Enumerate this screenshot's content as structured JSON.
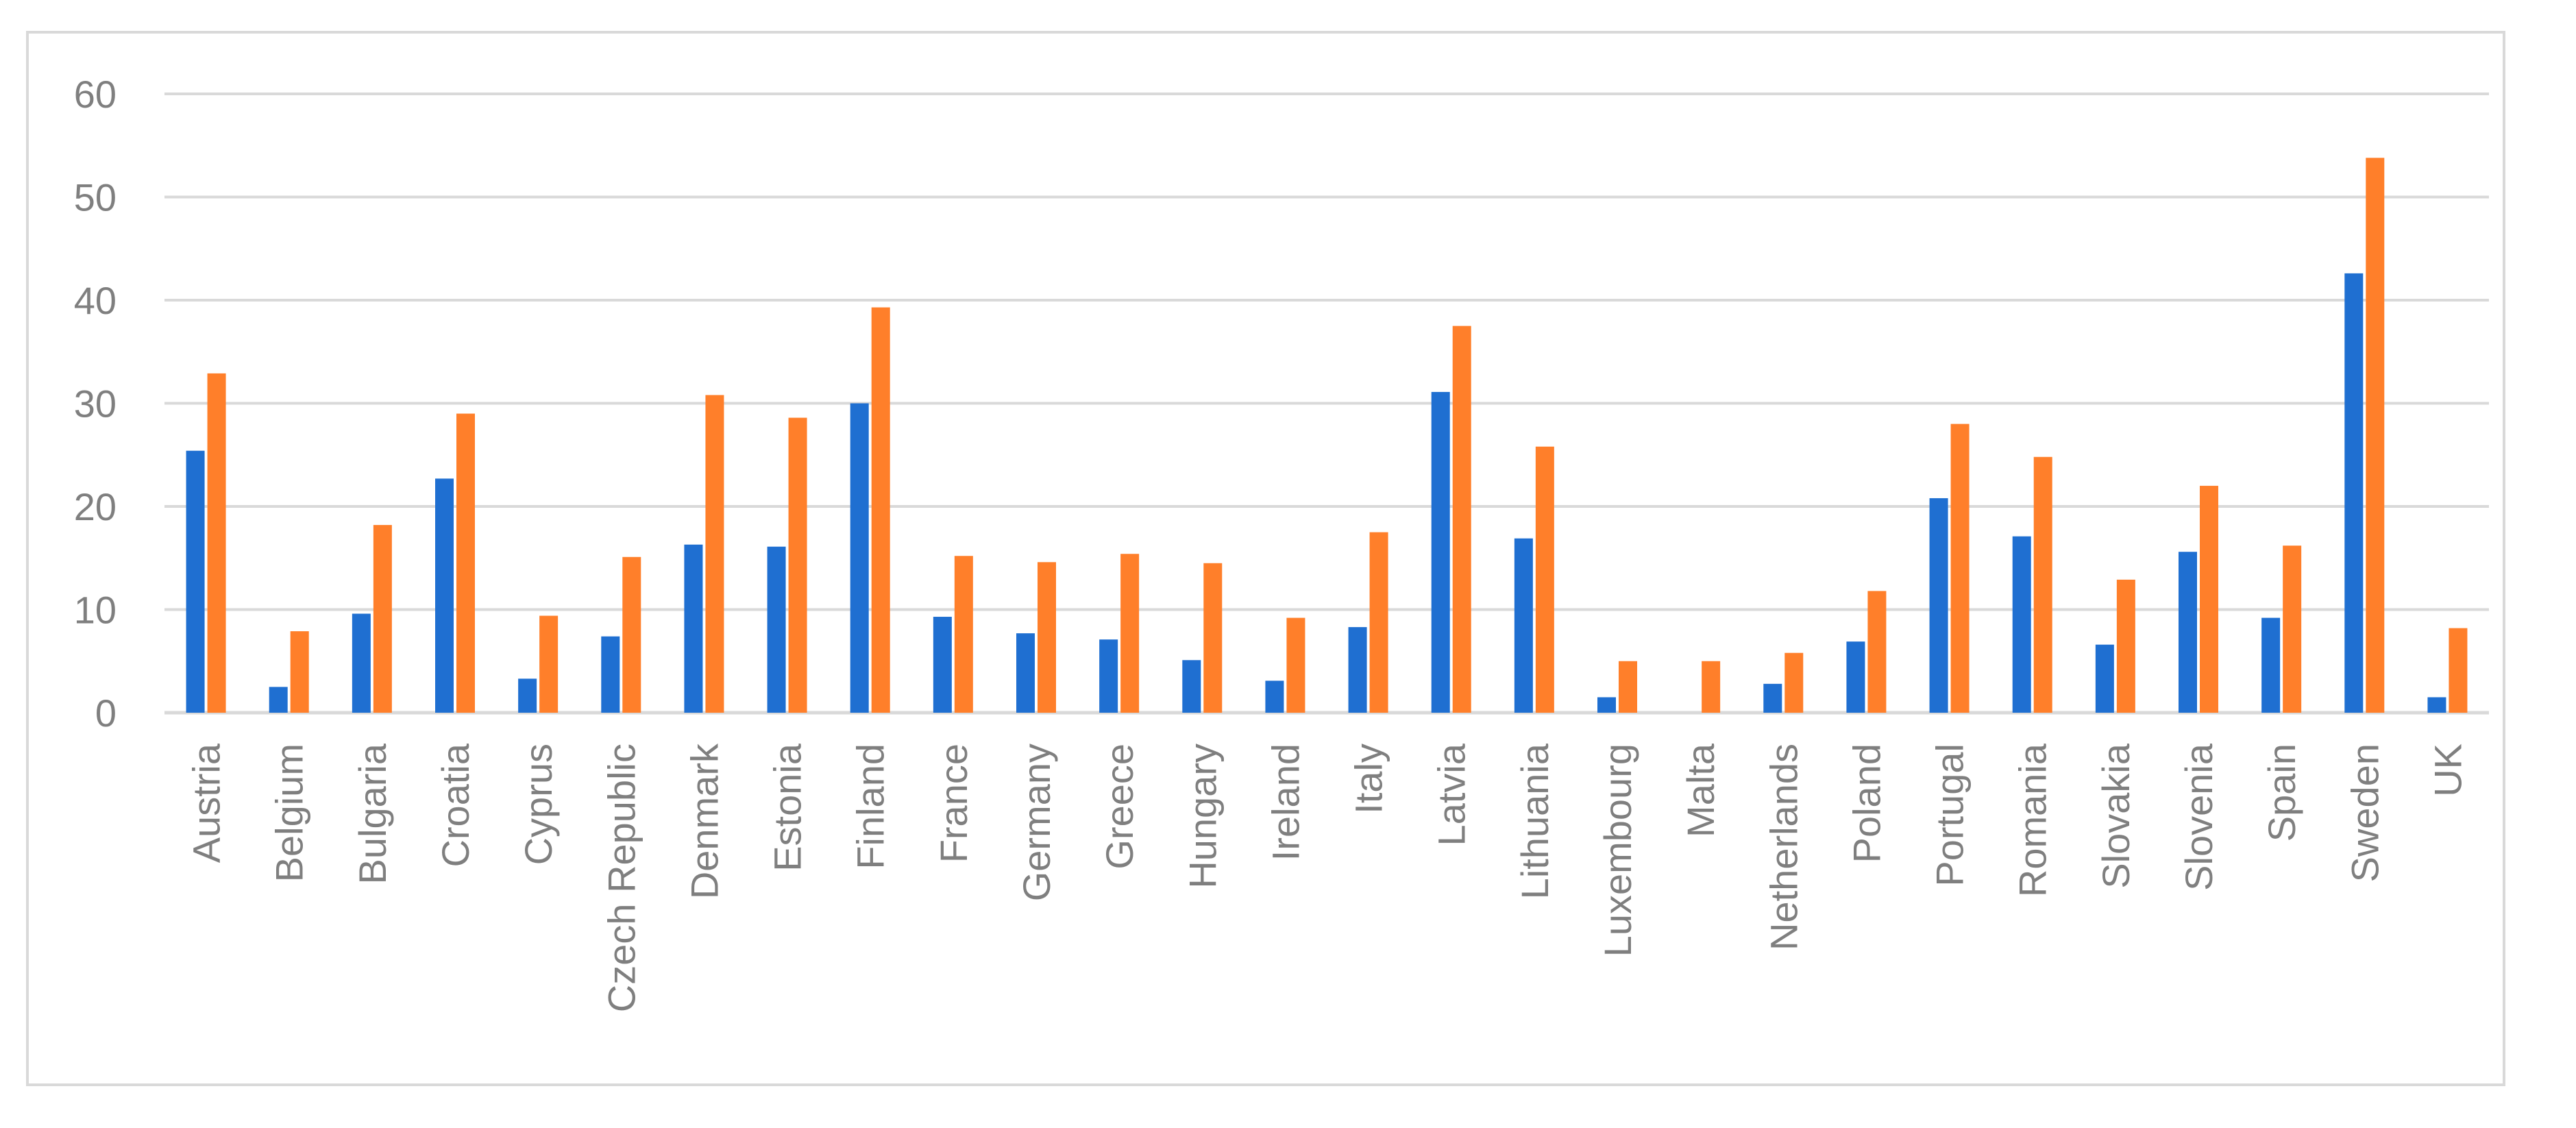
{
  "chart_data": {
    "type": "bar",
    "categories": [
      "Austria",
      "Belgium",
      "Bulgaria",
      "Croatia",
      "Cyprus",
      "Czech Republic",
      "Denmark",
      "Estonia",
      "Finland",
      "France",
      "Germany",
      "Greece",
      "Hungary",
      "Ireland",
      "Italy",
      "Latvia",
      "Lithuania",
      "Luxembourg",
      "Malta",
      "Netherlands",
      "Poland",
      "Portugal",
      "Romania",
      "Slovakia",
      "Slovenia",
      "Spain",
      "Sweden",
      "UK"
    ],
    "series": [
      {
        "color": "#1f6fd1",
        "values": [
          25.4,
          2.5,
          9.6,
          22.7,
          3.3,
          7.4,
          16.3,
          16.1,
          30.0,
          9.3,
          7.7,
          7.1,
          5.1,
          3.1,
          8.3,
          31.1,
          16.9,
          1.5,
          0,
          2.8,
          6.9,
          20.8,
          17.1,
          6.6,
          15.6,
          9.2,
          42.6,
          1.5
        ]
      },
      {
        "color": "#ff7f2a",
        "values": [
          32.9,
          7.9,
          18.2,
          29.0,
          9.4,
          15.1,
          30.8,
          28.6,
          39.3,
          15.2,
          14.6,
          15.4,
          14.5,
          9.2,
          17.5,
          37.5,
          25.8,
          5.0,
          5.0,
          5.8,
          11.8,
          28.0,
          24.8,
          12.9,
          22.0,
          16.2,
          53.8,
          8.2
        ]
      }
    ],
    "y_ticks": [
      "0",
      "10",
      "20",
      "30",
      "40",
      "50",
      "60"
    ],
    "ylim": [
      0,
      60
    ],
    "grid": true,
    "legend": "none",
    "colors": {
      "gridline": "#d9d9d9",
      "axis": "#d9d9d9",
      "text": "#7f7f7f",
      "frame": "#d9d9d9"
    }
  }
}
